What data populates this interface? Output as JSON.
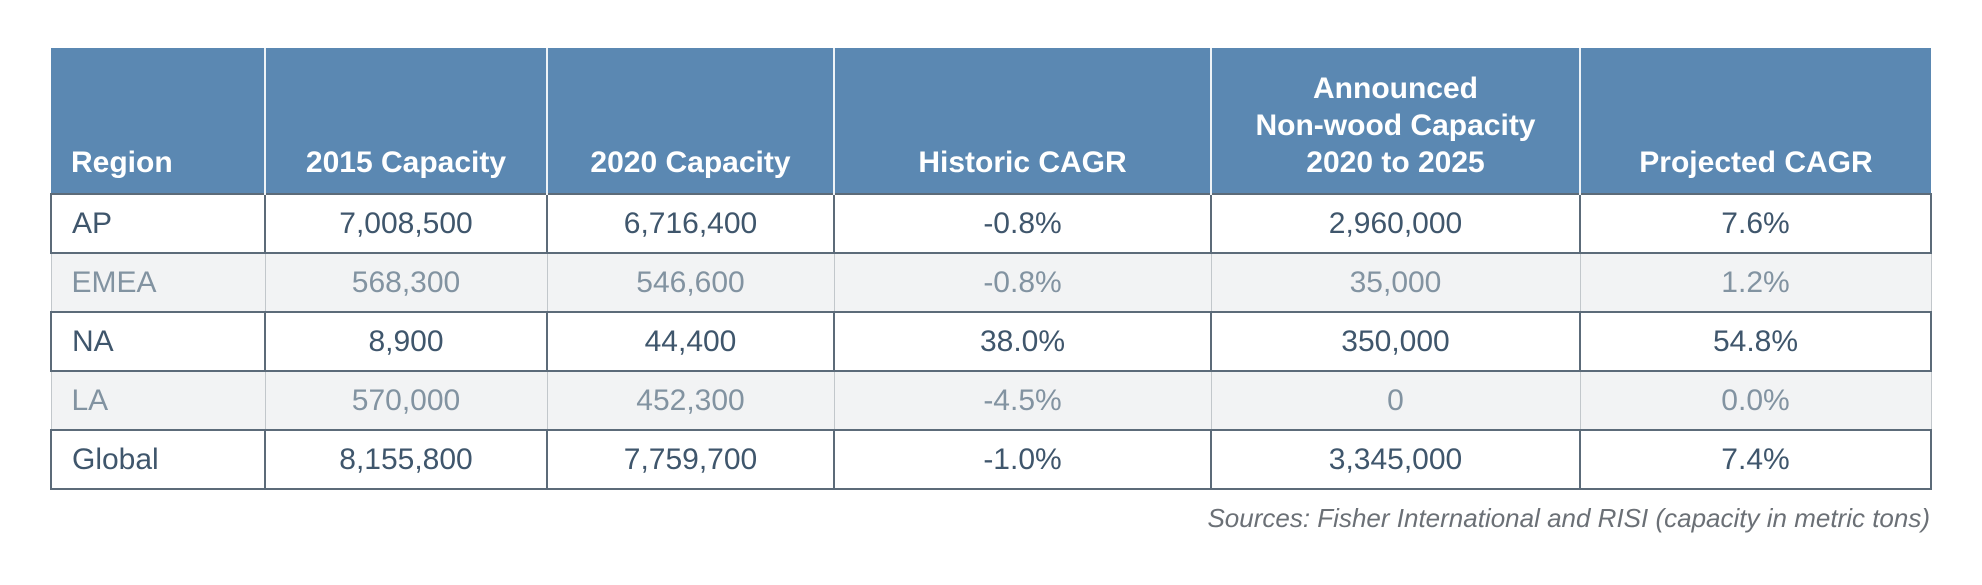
{
  "chart_data": {
    "type": "table",
    "columns": [
      "Region",
      "2015 Capacity",
      "2020 Capacity",
      "Historic CAGR",
      "Announced\nNon-wood Capacity\n2020 to 2025",
      "Projected CAGR"
    ],
    "rows": [
      [
        "AP",
        "7,008,500",
        "6,716,400",
        "-0.8%",
        "2,960,000",
        "7.6%"
      ],
      [
        "EMEA",
        "568,300",
        "546,600",
        "-0.8%",
        "35,000",
        "1.2%"
      ],
      [
        "NA",
        "8,900",
        "44,400",
        "38.0%",
        "350,000",
        "54.8%"
      ],
      [
        "LA",
        "570,000",
        "452,300",
        "-4.5%",
        "0",
        "0.0%"
      ],
      [
        "Global",
        "8,155,800",
        "7,759,700",
        "-1.0%",
        "3,345,000",
        "7.4%"
      ]
    ],
    "source_note": "Sources: Fisher International and RISI (capacity in metric tons)",
    "layout": {
      "highlighted_rows": [
        "AP",
        "NA",
        "Global"
      ],
      "striped_rows": [
        "EMEA",
        "LA"
      ]
    }
  },
  "colors": {
    "header_bg": "#5b88b2",
    "header_text": "#ffffff",
    "highlight_text": "#3f566c",
    "highlight_border": "#5c6b79",
    "striped_bg": "#f2f3f4",
    "striped_text": "#8293a1",
    "striped_border": "#c2c7cb",
    "source_text": "#6b7076"
  }
}
